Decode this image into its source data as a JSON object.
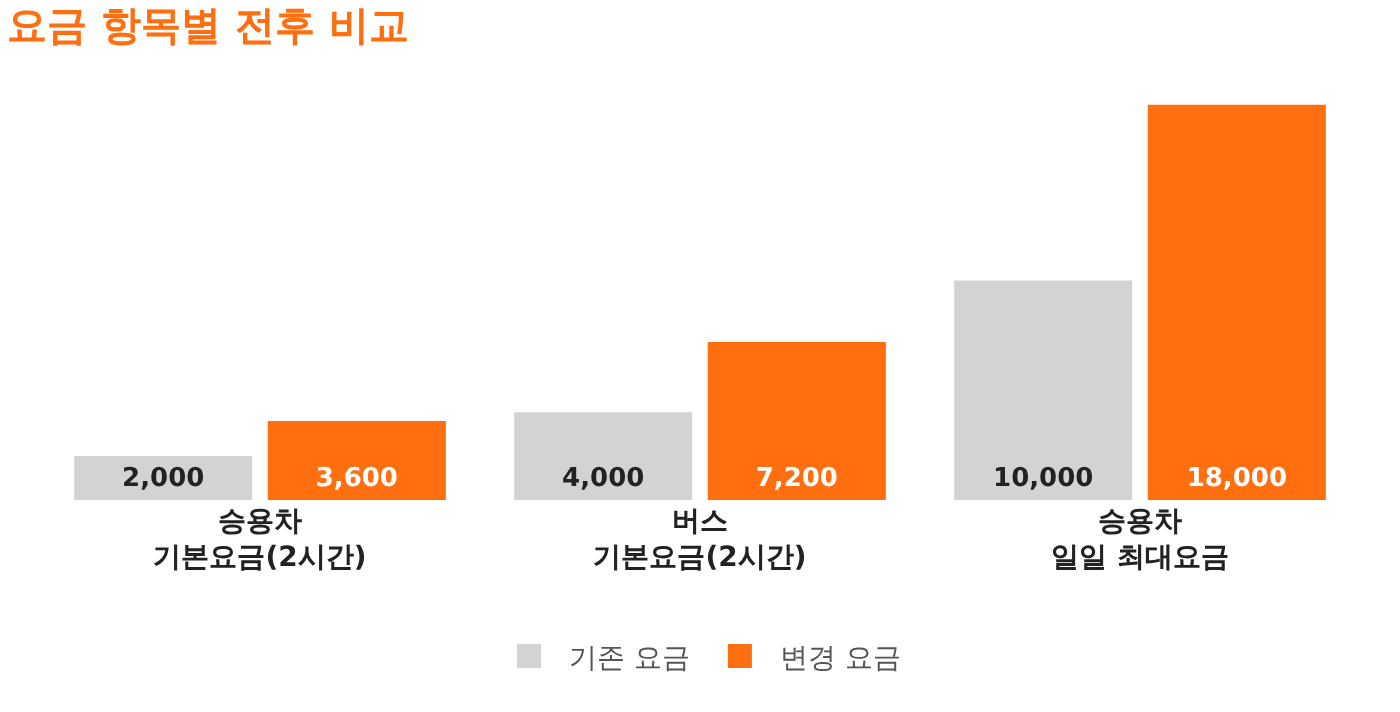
{
  "chart_data": {
    "type": "bar",
    "title": "요금 항목별 전후 비교",
    "categories": [
      "승용차\n기본요금(2시간)",
      "버스\n기본요금(2시간)",
      "승용차\n일일 최대요금"
    ],
    "series": [
      {
        "name": "기존 요금",
        "color": "#d3d3d3",
        "values": [
          2000,
          4000,
          10000
        ],
        "value_labels": [
          "2,000",
          "4,000",
          "10,000"
        ]
      },
      {
        "name": "변경 요금",
        "color": "#ff6f0f",
        "values": [
          3600,
          7200,
          18000
        ],
        "value_labels": [
          "3,600",
          "7,200",
          "18,000"
        ]
      }
    ],
    "legend": "bottom",
    "grid": false
  }
}
